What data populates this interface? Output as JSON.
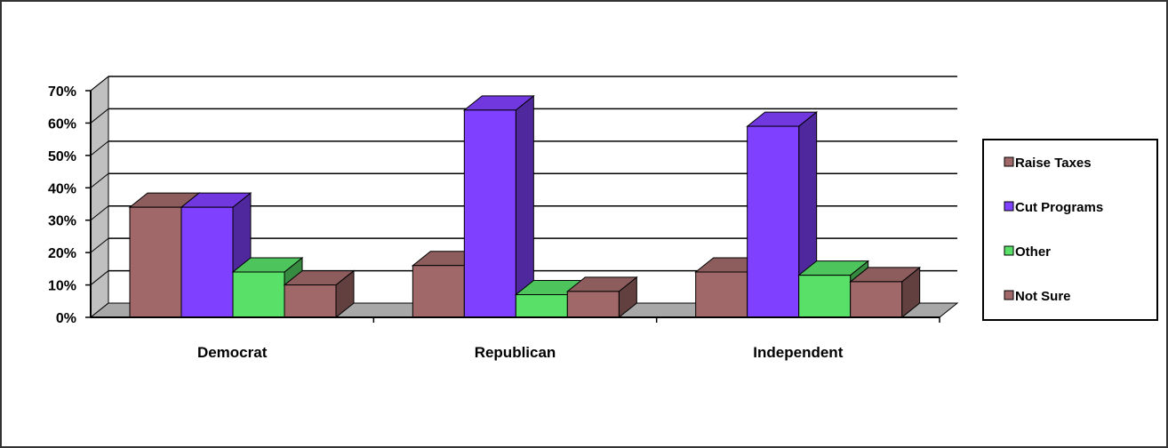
{
  "chart_data": {
    "type": "bar",
    "categories": [
      "Democrat",
      "Republican",
      "Independent"
    ],
    "series": [
      {
        "name": "Raise Taxes",
        "values": [
          34,
          16,
          14
        ],
        "color": "#a06868"
      },
      {
        "name": "Cut Programs",
        "values": [
          34,
          64,
          59
        ],
        "color": "#8040ff"
      },
      {
        "name": "Other",
        "values": [
          14,
          7,
          13
        ],
        "color": "#58e068"
      },
      {
        "name": "Not Sure",
        "values": [
          10,
          8,
          11
        ],
        "color": "#a06868"
      }
    ],
    "y_ticks": [
      "0%",
      "10%",
      "20%",
      "30%",
      "40%",
      "50%",
      "60%",
      "70%"
    ],
    "ylim": [
      0,
      70
    ],
    "title": "",
    "xlabel": "",
    "ylabel": "",
    "legend_position": "right",
    "grid": true,
    "style": "3d-clustered-column"
  }
}
